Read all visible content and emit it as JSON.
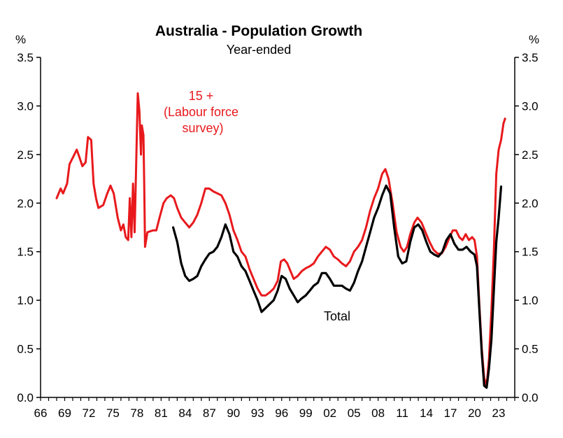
{
  "chart_data": {
    "type": "line",
    "title": "Australia - Population Growth",
    "subtitle": "Year-ended",
    "y_unit_left": "%",
    "y_unit_right": "%",
    "ylim": [
      0,
      3.5
    ],
    "xlim": [
      1966,
      2025
    ],
    "y_ticks": [
      "0.0",
      "0.5",
      "1.0",
      "1.5",
      "2.0",
      "2.5",
      "3.0",
      "3.5"
    ],
    "x_ticks": [
      "66",
      "69",
      "72",
      "75",
      "78",
      "81",
      "84",
      "87",
      "90",
      "93",
      "96",
      "99",
      "02",
      "05",
      "08",
      "11",
      "14",
      "17",
      "20",
      "23"
    ],
    "colors": {
      "labour_force": "#e8191c",
      "total": "#000000"
    },
    "annotations": {
      "labour_force_lines": [
        "15 +",
        "(Labour force",
        "survey)"
      ],
      "total": "Total"
    },
    "series": [
      {
        "name": "15 + (Labour force survey)",
        "color": "#e8191c",
        "points": [
          [
            1968,
            2.05
          ],
          [
            1968.5,
            2.15
          ],
          [
            1968.8,
            2.1
          ],
          [
            1969.3,
            2.2
          ],
          [
            1969.6,
            2.4
          ],
          [
            1970.2,
            2.5
          ],
          [
            1970.5,
            2.55
          ],
          [
            1970.8,
            2.48
          ],
          [
            1971.2,
            2.38
          ],
          [
            1971.6,
            2.42
          ],
          [
            1971.9,
            2.68
          ],
          [
            1972.3,
            2.65
          ],
          [
            1972.6,
            2.2
          ],
          [
            1972.9,
            2.05
          ],
          [
            1973.2,
            1.95
          ],
          [
            1973.8,
            1.98
          ],
          [
            1974.3,
            2.1
          ],
          [
            1974.7,
            2.18
          ],
          [
            1975.1,
            2.1
          ],
          [
            1975.6,
            1.85
          ],
          [
            1976.0,
            1.72
          ],
          [
            1976.3,
            1.78
          ],
          [
            1976.6,
            1.65
          ],
          [
            1976.9,
            1.62
          ],
          [
            1977.1,
            2.05
          ],
          [
            1977.3,
            1.65
          ],
          [
            1977.5,
            2.2
          ],
          [
            1977.7,
            1.7
          ],
          [
            1977.9,
            2.4
          ],
          [
            1978.1,
            3.13
          ],
          [
            1978.3,
            2.95
          ],
          [
            1978.5,
            2.5
          ],
          [
            1978.6,
            2.8
          ],
          [
            1978.8,
            2.7
          ],
          [
            1978.9,
            2.2
          ],
          [
            1979.0,
            1.55
          ],
          [
            1979.3,
            1.7
          ],
          [
            1980.0,
            1.72
          ],
          [
            1980.4,
            1.72
          ],
          [
            1980.8,
            1.85
          ],
          [
            1981.3,
            2.0
          ],
          [
            1981.7,
            2.05
          ],
          [
            1982.2,
            2.08
          ],
          [
            1982.6,
            2.05
          ],
          [
            1983.0,
            1.95
          ],
          [
            1983.5,
            1.85
          ],
          [
            1984.0,
            1.8
          ],
          [
            1984.5,
            1.75
          ],
          [
            1985.0,
            1.8
          ],
          [
            1985.5,
            1.88
          ],
          [
            1986.0,
            2.0
          ],
          [
            1986.5,
            2.15
          ],
          [
            1987.0,
            2.15
          ],
          [
            1987.5,
            2.12
          ],
          [
            1988.0,
            2.1
          ],
          [
            1988.5,
            2.08
          ],
          [
            1989.0,
            2.0
          ],
          [
            1989.5,
            1.88
          ],
          [
            1990.0,
            1.72
          ],
          [
            1990.5,
            1.62
          ],
          [
            1991.0,
            1.5
          ],
          [
            1991.5,
            1.45
          ],
          [
            1992.0,
            1.32
          ],
          [
            1992.5,
            1.22
          ],
          [
            1993.0,
            1.12
          ],
          [
            1993.5,
            1.05
          ],
          [
            1994.0,
            1.05
          ],
          [
            1994.5,
            1.08
          ],
          [
            1995.0,
            1.12
          ],
          [
            1995.5,
            1.2
          ],
          [
            1995.9,
            1.4
          ],
          [
            1996.3,
            1.42
          ],
          [
            1996.7,
            1.38
          ],
          [
            1997.0,
            1.32
          ],
          [
            1997.5,
            1.22
          ],
          [
            1998.0,
            1.25
          ],
          [
            1998.5,
            1.3
          ],
          [
            1999.0,
            1.33
          ],
          [
            1999.5,
            1.35
          ],
          [
            2000.0,
            1.38
          ],
          [
            2000.5,
            1.45
          ],
          [
            2001.0,
            1.5
          ],
          [
            2001.5,
            1.55
          ],
          [
            2002.0,
            1.52
          ],
          [
            2002.5,
            1.45
          ],
          [
            2003.0,
            1.42
          ],
          [
            2003.5,
            1.38
          ],
          [
            2004.0,
            1.35
          ],
          [
            2004.5,
            1.4
          ],
          [
            2005.0,
            1.5
          ],
          [
            2005.5,
            1.55
          ],
          [
            2006.0,
            1.62
          ],
          [
            2006.5,
            1.75
          ],
          [
            2007.0,
            1.92
          ],
          [
            2007.5,
            2.05
          ],
          [
            2008.0,
            2.15
          ],
          [
            2008.5,
            2.3
          ],
          [
            2008.9,
            2.35
          ],
          [
            2009.3,
            2.25
          ],
          [
            2009.8,
            2.0
          ],
          [
            2010.3,
            1.7
          ],
          [
            2010.8,
            1.55
          ],
          [
            2011.2,
            1.5
          ],
          [
            2011.6,
            1.55
          ],
          [
            2012.0,
            1.68
          ],
          [
            2012.5,
            1.8
          ],
          [
            2012.9,
            1.85
          ],
          [
            2013.4,
            1.8
          ],
          [
            2013.9,
            1.7
          ],
          [
            2014.4,
            1.6
          ],
          [
            2014.9,
            1.52
          ],
          [
            2015.4,
            1.48
          ],
          [
            2015.9,
            1.48
          ],
          [
            2016.4,
            1.55
          ],
          [
            2016.9,
            1.65
          ],
          [
            2017.3,
            1.72
          ],
          [
            2017.7,
            1.72
          ],
          [
            2018.1,
            1.65
          ],
          [
            2018.5,
            1.62
          ],
          [
            2018.9,
            1.68
          ],
          [
            2019.3,
            1.62
          ],
          [
            2019.7,
            1.65
          ],
          [
            2020.0,
            1.62
          ],
          [
            2020.3,
            1.45
          ],
          [
            2020.6,
            0.95
          ],
          [
            2020.9,
            0.5
          ],
          [
            2021.2,
            0.2
          ],
          [
            2021.5,
            0.12
          ],
          [
            2021.8,
            0.4
          ],
          [
            2022.1,
            0.9
          ],
          [
            2022.4,
            1.5
          ],
          [
            2022.7,
            2.3
          ],
          [
            2023.0,
            2.55
          ],
          [
            2023.3,
            2.65
          ],
          [
            2023.6,
            2.82
          ],
          [
            2023.8,
            2.87
          ]
        ]
      },
      {
        "name": "Total",
        "color": "#000000",
        "points": [
          [
            1982.5,
            1.75
          ],
          [
            1983.0,
            1.6
          ],
          [
            1983.5,
            1.38
          ],
          [
            1984.0,
            1.25
          ],
          [
            1984.5,
            1.2
          ],
          [
            1985.0,
            1.22
          ],
          [
            1985.5,
            1.25
          ],
          [
            1986.0,
            1.35
          ],
          [
            1986.5,
            1.42
          ],
          [
            1987.0,
            1.48
          ],
          [
            1987.5,
            1.5
          ],
          [
            1988.0,
            1.55
          ],
          [
            1988.5,
            1.65
          ],
          [
            1989.0,
            1.78
          ],
          [
            1989.5,
            1.68
          ],
          [
            1990.0,
            1.5
          ],
          [
            1990.5,
            1.45
          ],
          [
            1991.0,
            1.35
          ],
          [
            1991.5,
            1.3
          ],
          [
            1992.0,
            1.2
          ],
          [
            1992.5,
            1.1
          ],
          [
            1993.0,
            1.0
          ],
          [
            1993.5,
            0.88
          ],
          [
            1994.0,
            0.92
          ],
          [
            1994.5,
            0.96
          ],
          [
            1995.0,
            1.0
          ],
          [
            1995.5,
            1.1
          ],
          [
            1996.0,
            1.25
          ],
          [
            1996.5,
            1.22
          ],
          [
            1997.0,
            1.12
          ],
          [
            1997.5,
            1.05
          ],
          [
            1998.0,
            0.98
          ],
          [
            1998.5,
            1.02
          ],
          [
            1999.0,
            1.05
          ],
          [
            1999.5,
            1.1
          ],
          [
            2000.0,
            1.15
          ],
          [
            2000.5,
            1.18
          ],
          [
            2001.0,
            1.28
          ],
          [
            2001.5,
            1.28
          ],
          [
            2002.0,
            1.22
          ],
          [
            2002.5,
            1.15
          ],
          [
            2003.0,
            1.15
          ],
          [
            2003.5,
            1.15
          ],
          [
            2004.0,
            1.12
          ],
          [
            2004.5,
            1.1
          ],
          [
            2005.0,
            1.18
          ],
          [
            2005.5,
            1.3
          ],
          [
            2006.0,
            1.4
          ],
          [
            2006.5,
            1.55
          ],
          [
            2007.0,
            1.7
          ],
          [
            2007.5,
            1.85
          ],
          [
            2008.0,
            1.95
          ],
          [
            2008.5,
            2.08
          ],
          [
            2009.0,
            2.18
          ],
          [
            2009.5,
            2.1
          ],
          [
            2010.0,
            1.75
          ],
          [
            2010.5,
            1.45
          ],
          [
            2011.0,
            1.38
          ],
          [
            2011.5,
            1.4
          ],
          [
            2012.0,
            1.6
          ],
          [
            2012.5,
            1.75
          ],
          [
            2013.0,
            1.78
          ],
          [
            2013.5,
            1.72
          ],
          [
            2014.0,
            1.6
          ],
          [
            2014.5,
            1.5
          ],
          [
            2015.0,
            1.47
          ],
          [
            2015.5,
            1.45
          ],
          [
            2016.0,
            1.5
          ],
          [
            2016.5,
            1.62
          ],
          [
            2017.0,
            1.68
          ],
          [
            2017.5,
            1.58
          ],
          [
            2018.0,
            1.52
          ],
          [
            2018.5,
            1.52
          ],
          [
            2019.0,
            1.55
          ],
          [
            2019.5,
            1.5
          ],
          [
            2020.0,
            1.47
          ],
          [
            2020.3,
            1.35
          ],
          [
            2020.6,
            0.9
          ],
          [
            2020.9,
            0.45
          ],
          [
            2021.2,
            0.12
          ],
          [
            2021.5,
            0.1
          ],
          [
            2021.8,
            0.3
          ],
          [
            2022.1,
            0.6
          ],
          [
            2022.4,
            1.1
          ],
          [
            2022.7,
            1.6
          ],
          [
            2023.0,
            1.85
          ],
          [
            2023.3,
            2.17
          ]
        ]
      }
    ]
  }
}
